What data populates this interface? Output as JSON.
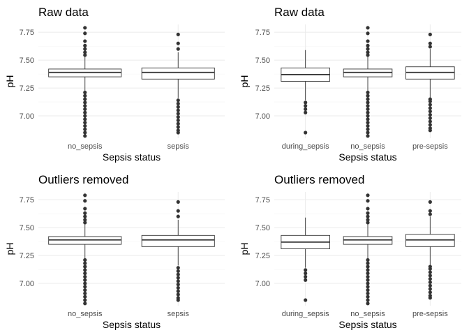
{
  "chart_data": [
    {
      "type": "box",
      "title": "Raw data",
      "xlabel": "Sepsis status",
      "ylabel": "pH",
      "ylim": [
        6.8,
        7.82
      ],
      "yticks": [
        "7.00",
        "7.25",
        "7.50",
        "7.75"
      ],
      "grid": true,
      "categories": [
        "no_sepsis",
        "sepsis"
      ],
      "boxes": [
        {
          "category": "no_sepsis",
          "whisker_low": 7.22,
          "q1": 7.35,
          "median": 7.39,
          "q3": 7.42,
          "whisker_high": 7.53,
          "outliers": [
            6.82,
            6.85,
            6.88,
            6.91,
            6.94,
            6.97,
            7.0,
            7.03,
            7.06,
            7.09,
            7.12,
            7.15,
            7.18,
            7.21,
            7.545,
            7.57,
            7.6,
            7.63,
            7.67,
            7.74,
            7.79
          ]
        },
        {
          "category": "sepsis",
          "whisker_low": 7.16,
          "q1": 7.33,
          "median": 7.39,
          "q3": 7.43,
          "whisker_high": 7.57,
          "outliers": [
            6.85,
            6.87,
            6.9,
            6.93,
            6.96,
            6.99,
            7.02,
            7.05,
            7.08,
            7.11,
            7.14,
            7.6,
            7.65,
            7.73
          ]
        }
      ]
    },
    {
      "type": "box",
      "title": "Raw data",
      "xlabel": "Sepsis status",
      "ylabel": "pH",
      "ylim": [
        6.8,
        7.82
      ],
      "yticks": [
        "7.00",
        "7.25",
        "7.50",
        "7.75"
      ],
      "grid": true,
      "categories": [
        "during_sepsis",
        "no_sepsis",
        "pre-sepsis"
      ],
      "boxes": [
        {
          "category": "during_sepsis",
          "whisker_low": 7.14,
          "q1": 7.31,
          "median": 7.37,
          "q3": 7.43,
          "whisker_high": 7.59,
          "outliers": [
            6.85,
            7.03,
            7.06,
            7.09,
            7.12
          ]
        },
        {
          "category": "no_sepsis",
          "whisker_low": 7.22,
          "q1": 7.35,
          "median": 7.39,
          "q3": 7.42,
          "whisker_high": 7.53,
          "outliers": [
            6.82,
            6.85,
            6.88,
            6.91,
            6.94,
            6.97,
            7.0,
            7.03,
            7.06,
            7.09,
            7.12,
            7.15,
            7.18,
            7.21,
            7.545,
            7.57,
            7.6,
            7.63,
            7.67,
            7.74,
            7.79
          ]
        },
        {
          "category": "pre-sepsis",
          "whisker_low": 7.16,
          "q1": 7.33,
          "median": 7.39,
          "q3": 7.44,
          "whisker_high": 7.6,
          "outliers": [
            6.87,
            6.89,
            6.92,
            6.95,
            6.98,
            7.01,
            7.04,
            7.07,
            7.1,
            7.13,
            7.15,
            7.62,
            7.65,
            7.73
          ]
        }
      ]
    },
    {
      "type": "box",
      "title": "Outliers removed",
      "xlabel": "Sepsis status",
      "ylabel": "pH",
      "ylim": [
        6.8,
        7.82
      ],
      "yticks": [
        "7.00",
        "7.25",
        "7.50",
        "7.75"
      ],
      "grid": true,
      "categories": [
        "no_sepsis",
        "sepsis"
      ],
      "boxes": [
        {
          "category": "no_sepsis",
          "whisker_low": 7.22,
          "q1": 7.35,
          "median": 7.39,
          "q3": 7.42,
          "whisker_high": 7.53,
          "outliers": [
            6.82,
            6.85,
            6.88,
            6.91,
            6.94,
            6.97,
            7.0,
            7.03,
            7.06,
            7.09,
            7.12,
            7.15,
            7.18,
            7.21,
            7.545,
            7.57,
            7.6,
            7.63,
            7.67,
            7.74,
            7.79
          ]
        },
        {
          "category": "sepsis",
          "whisker_low": 7.16,
          "q1": 7.33,
          "median": 7.39,
          "q3": 7.43,
          "whisker_high": 7.57,
          "outliers": [
            6.85,
            6.87,
            6.9,
            6.93,
            6.96,
            6.99,
            7.02,
            7.05,
            7.08,
            7.11,
            7.14,
            7.6,
            7.65,
            7.73
          ]
        }
      ]
    },
    {
      "type": "box",
      "title": "Outliers removed",
      "xlabel": "Sepsis status",
      "ylabel": "pH",
      "ylim": [
        6.8,
        7.82
      ],
      "yticks": [
        "7.00",
        "7.25",
        "7.50",
        "7.75"
      ],
      "grid": true,
      "categories": [
        "during_sepsis",
        "no_sepsis",
        "pre-sepsis"
      ],
      "boxes": [
        {
          "category": "during_sepsis",
          "whisker_low": 7.14,
          "q1": 7.31,
          "median": 7.37,
          "q3": 7.43,
          "whisker_high": 7.59,
          "outliers": [
            6.85,
            7.03,
            7.06,
            7.09,
            7.12
          ]
        },
        {
          "category": "no_sepsis",
          "whisker_low": 7.22,
          "q1": 7.35,
          "median": 7.39,
          "q3": 7.42,
          "whisker_high": 7.53,
          "outliers": [
            6.82,
            6.85,
            6.88,
            6.91,
            6.94,
            6.97,
            7.0,
            7.03,
            7.06,
            7.09,
            7.12,
            7.15,
            7.18,
            7.21,
            7.545,
            7.57,
            7.6,
            7.63,
            7.67,
            7.74,
            7.79
          ]
        },
        {
          "category": "pre-sepsis",
          "whisker_low": 7.16,
          "q1": 7.33,
          "median": 7.39,
          "q3": 7.44,
          "whisker_high": 7.6,
          "outliers": [
            6.87,
            6.89,
            6.92,
            6.95,
            6.98,
            7.01,
            7.04,
            7.07,
            7.1,
            7.13,
            7.15,
            7.62,
            7.65,
            7.73
          ]
        }
      ]
    }
  ],
  "colors": {
    "box_stroke": "#333333",
    "grid": "#ebebeb",
    "tick_text": "#4d4d4d",
    "background": "#ffffff"
  }
}
